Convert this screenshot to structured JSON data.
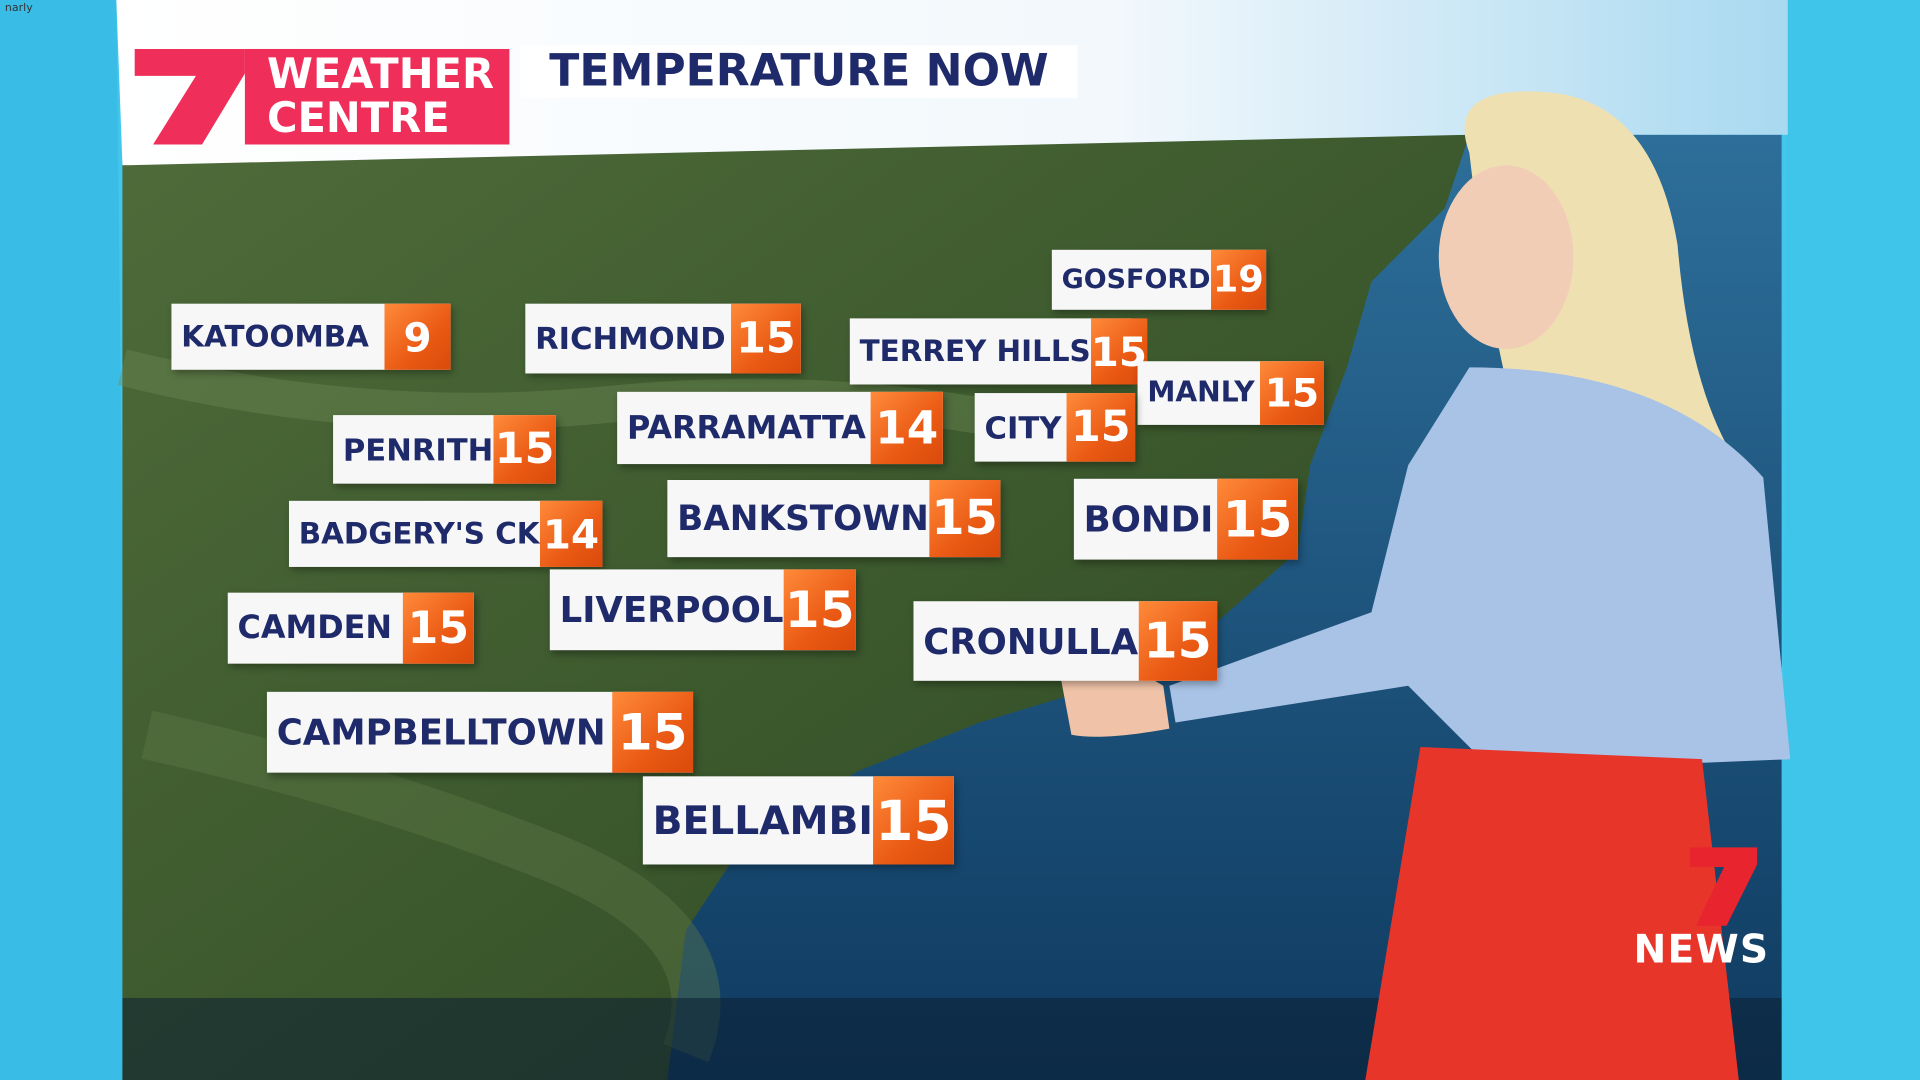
{
  "corner_text": "narly",
  "header": {
    "brand": [
      "WEATHER",
      "CENTRE"
    ],
    "title": "TEMPERATURE NOW"
  },
  "locations": [
    {
      "name": "KATOOMBA",
      "temp": 9
    },
    {
      "name": "RICHMOND",
      "temp": 15
    },
    {
      "name": "GOSFORD",
      "temp": 19
    },
    {
      "name": "TERREY HILLS",
      "temp": 15
    },
    {
      "name": "MANLY",
      "temp": 15
    },
    {
      "name": "PENRITH",
      "temp": 15
    },
    {
      "name": "PARRAMATTA",
      "temp": 14
    },
    {
      "name": "CITY",
      "temp": 15
    },
    {
      "name": "BADGERY'S CK",
      "temp": 14
    },
    {
      "name": "BANKSTOWN",
      "temp": 15
    },
    {
      "name": "BONDI",
      "temp": 15
    },
    {
      "name": "CAMDEN",
      "temp": 15
    },
    {
      "name": "LIVERPOOL",
      "temp": 15
    },
    {
      "name": "CRONULLA",
      "temp": 15
    },
    {
      "name": "CAMPBELLTOWN",
      "temp": 15
    },
    {
      "name": "BELLAMBI",
      "temp": 15
    }
  ],
  "logo": "NEWS"
}
